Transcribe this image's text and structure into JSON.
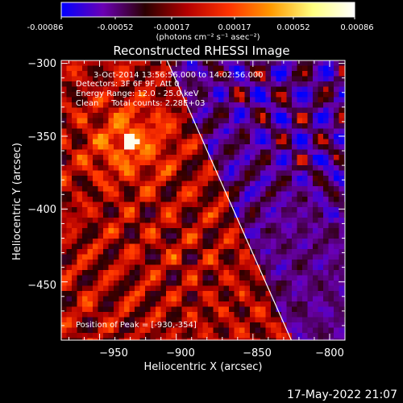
{
  "colorbar": {
    "ticks": [
      "-0.00086",
      "-0.00052",
      "-0.00017",
      "0.00017",
      "0.00052",
      "0.00086"
    ],
    "units": "(photons cm⁻² s⁻¹ asec⁻²)"
  },
  "chart_data": {
    "type": "heatmap",
    "title": "Reconstructed RHESSI Image",
    "xlabel": "Heliocentric X (arcsec)",
    "ylabel": "Heliocentric Y (arcsec)",
    "xlim": [
      -975,
      -790
    ],
    "ylim": [
      -490,
      -298
    ],
    "x_ticks": [
      -950,
      -900,
      -850,
      -800
    ],
    "x_tick_labels": [
      "−950",
      "−900",
      "−850",
      "−800"
    ],
    "y_ticks": [
      -300,
      -350,
      -400,
      -450
    ],
    "y_tick_labels": [
      "−300",
      "−350",
      "−400",
      "−450"
    ],
    "color_range": [
      -0.00086,
      0.00086
    ],
    "colormap": [
      "#0000ff",
      "#6b00b4",
      "#2a0000",
      "#b40000",
      "#ff3300",
      "#ff9900",
      "#ffff80",
      "#ffffff"
    ],
    "peak": {
      "x": -930,
      "y": -354
    },
    "limb_line": [
      [
        -906,
        -298
      ],
      [
        -825,
        -490
      ]
    ],
    "info": [
      "3-Oct-2014 13:56:56.000 to 14:02:56.000",
      "Detectors: 3F 6F 9F, Att 0",
      "Energy Range: 12.0 - 25.0 keV",
      "Clean     Total counts: 2.28E+03"
    ],
    "peak_label": "Position of Peak = [-930,-354]"
  },
  "timestamp": "17-May-2022 21:07"
}
